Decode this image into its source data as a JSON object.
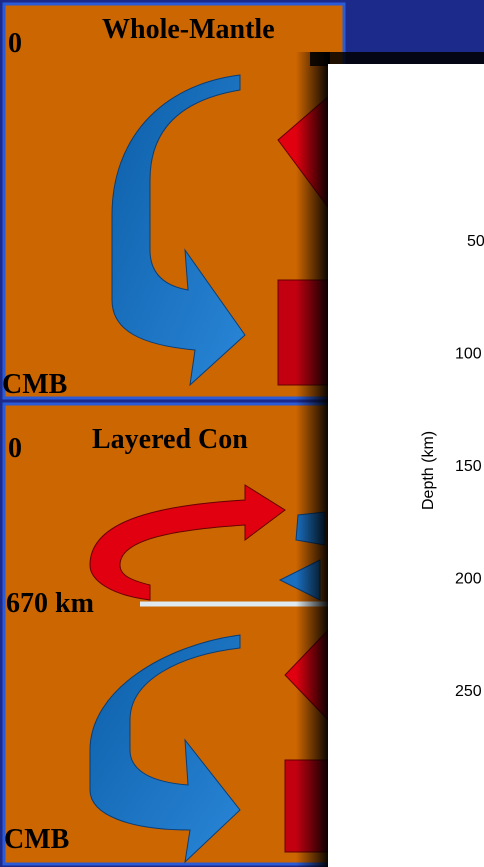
{
  "top_panel": {
    "title": "Whole-Mantle",
    "top_label": "0",
    "bottom_label": "CMB"
  },
  "bottom_panel": {
    "title": "Layered Con",
    "top_label": "0",
    "boundary_label": "670 km",
    "bottom_label": "CMB"
  },
  "overlay_chart": {
    "axis_label": "Depth (km)",
    "ticks": [
      "50",
      "100",
      "150",
      "200",
      "250"
    ]
  }
}
